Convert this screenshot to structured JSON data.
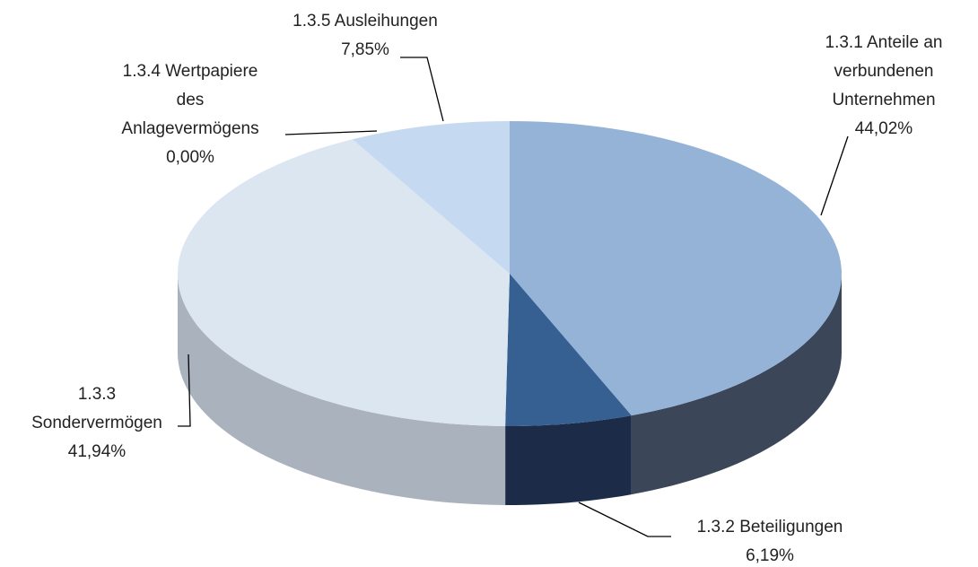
{
  "chart_data": {
    "type": "pie3d",
    "categories": [
      [
        "1.3.1 Anteile an",
        "verbundenen",
        "Unternehmen"
      ],
      [
        "1.3.2 Beteiligungen"
      ],
      [
        "1.3.3",
        "Sondervermögen"
      ],
      [
        "1.3.4 Wertpapiere",
        "des",
        "Anlagevermögens"
      ],
      [
        "1.3.5 Ausleihungen"
      ]
    ],
    "values": [
      44.02,
      6.19,
      41.94,
      0.0,
      7.85
    ],
    "value_labels": [
      "44,02%",
      "6,19%",
      "41,94%",
      "0,00%",
      "7,85%"
    ],
    "colors": [
      "#95b3d7",
      "#366092",
      "#dce6f1",
      "#b8cce4",
      "#c5d9f1"
    ],
    "side_colors": [
      "#3b4759",
      "#1c2b48",
      "#a9b2bd",
      "#8894a3",
      "#8c9aab"
    ]
  }
}
